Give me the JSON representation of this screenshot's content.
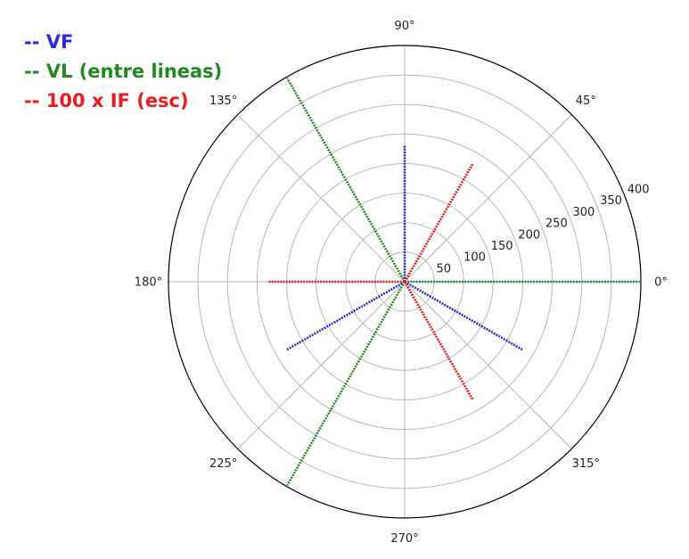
{
  "chart_data": {
    "type": "polar-line",
    "title": "",
    "legend_position": "top-left",
    "radial_axis": {
      "rlim": [
        0,
        400
      ],
      "ticks": [
        50,
        100,
        150,
        200,
        250,
        300,
        350,
        400
      ],
      "tick_labels": [
        "50",
        "100",
        "150",
        "200",
        "250",
        "300",
        "350",
        "400"
      ],
      "label_angle_deg": 22.5
    },
    "angular_axis": {
      "ticks_deg": [
        0,
        45,
        90,
        135,
        180,
        225,
        270,
        315
      ],
      "tick_labels": [
        "0°",
        "45°",
        "90°",
        "135°",
        "180°",
        "225°",
        "270°",
        "315°"
      ]
    },
    "grid": true,
    "series": [
      {
        "name": "-- VF",
        "color": "#2a2ad8",
        "segments": [
          {
            "theta_deg": 90,
            "r": 230
          },
          {
            "theta_deg": 210,
            "r": 230
          },
          {
            "theta_deg": 330,
            "r": 230
          }
        ]
      },
      {
        "name": "-- VL (entre lineas)",
        "color": "#1e8a1e",
        "segments": [
          {
            "theta_deg": 0,
            "r": 398
          },
          {
            "theta_deg": 120,
            "r": 398
          },
          {
            "theta_deg": 240,
            "r": 398
          }
        ]
      },
      {
        "name": "-- 100 x IF (esc)",
        "color": "#e81c1c",
        "segments": [
          {
            "theta_deg": 60,
            "r": 230
          },
          {
            "theta_deg": 180,
            "r": 230
          },
          {
            "theta_deg": 300,
            "r": 230
          }
        ]
      }
    ]
  }
}
